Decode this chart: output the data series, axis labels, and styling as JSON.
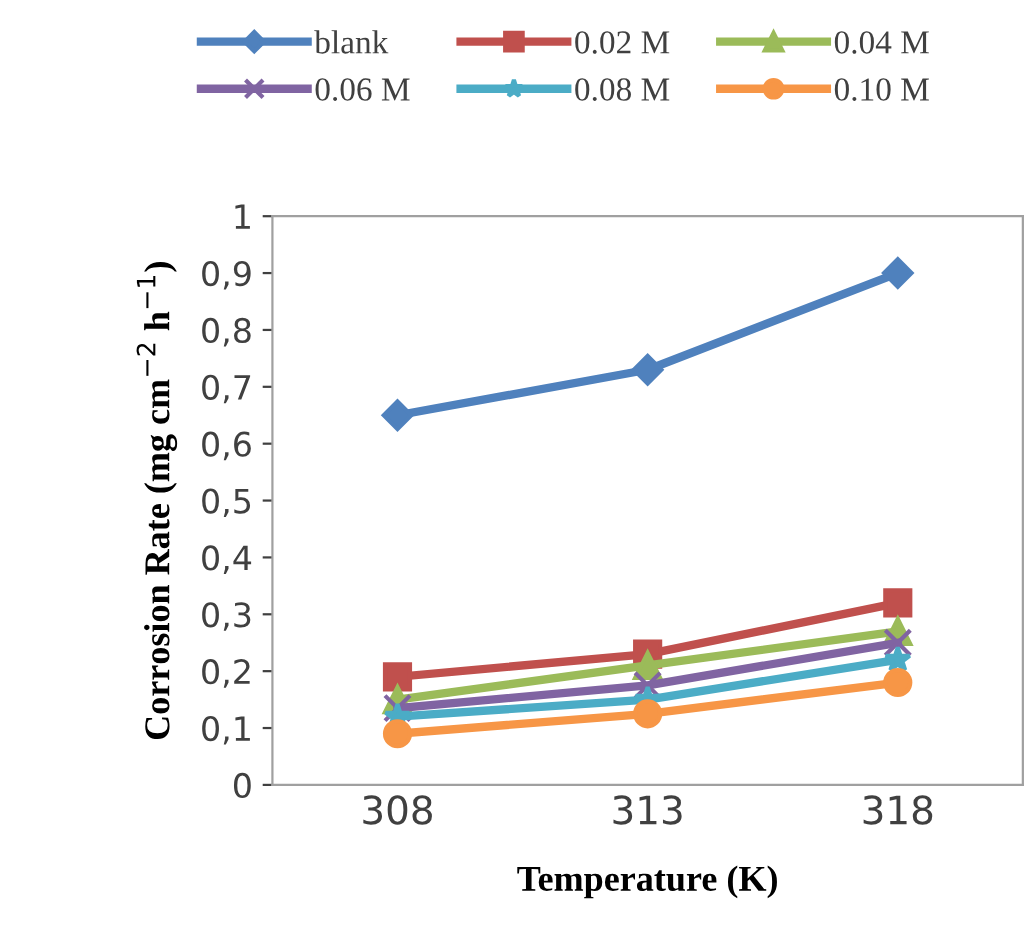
{
  "chart_data": {
    "type": "line",
    "xlabel": "Temperature (K)",
    "ylabel": "Corrosion Rate (mg cm$^{−2}$ h$^{−1}$)",
    "categories": [
      "308",
      "313",
      "318"
    ],
    "series": [
      {
        "name": "blank",
        "color": "#4f81bd",
        "marker": "diamond",
        "values": [
          0.65,
          0.73,
          0.9
        ]
      },
      {
        "name": "0.02 M",
        "color": "#c0504d",
        "marker": "square",
        "values": [
          0.19,
          0.23,
          0.32
        ]
      },
      {
        "name": "0.04 M",
        "color": "#9bbb59",
        "marker": "triangle",
        "values": [
          0.15,
          0.21,
          0.27
        ]
      },
      {
        "name": "0.06 M",
        "color": "#8064a2",
        "marker": "cross",
        "values": [
          0.135,
          0.175,
          0.25
        ]
      },
      {
        "name": "0.08 M",
        "color": "#4bacc6",
        "marker": "star",
        "values": [
          0.12,
          0.15,
          0.22
        ]
      },
      {
        "name": "0.10 M",
        "color": "#f79646",
        "marker": "circle",
        "values": [
          0.09,
          0.125,
          0.18
        ]
      }
    ],
    "ylim": [
      0,
      1
    ],
    "yticks": [
      0,
      {
        "value": 0.1,
        "label": "0,1"
      },
      {
        "value": 0.2,
        "label": "0,2"
      },
      {
        "value": 0.3,
        "label": "0,3"
      },
      {
        "value": 0.4,
        "label": "0,4"
      },
      {
        "value": 0.5,
        "label": "0,5"
      },
      {
        "value": 0.6,
        "label": "0,6"
      },
      {
        "value": 0.7,
        "label": "0,7"
      },
      {
        "value": 0.8,
        "label": "0,8"
      },
      {
        "value": 0.9,
        "label": "0,9"
      },
      1
    ],
    "grid": false,
    "legend": "top",
    "line_style": "solid"
  }
}
